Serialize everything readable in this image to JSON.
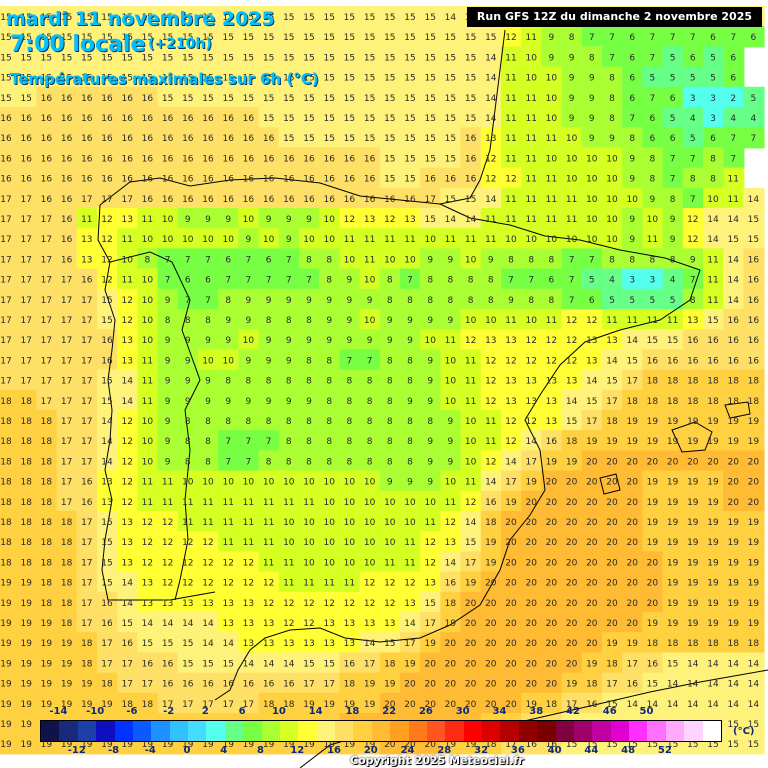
{
  "header": {
    "date_line": "mardi 11 novembre 2025",
    "time_line": "7:00 locale",
    "lead_time": "(+210h)",
    "variable_line": "Températures maximales sur 6h (°C)",
    "run_info": "Run GFS 12Z du dimanche 2 novembre 2025"
  },
  "legend": {
    "unit": "(°C)",
    "upper_ticks": [
      "-14",
      "-10",
      "-6",
      "-2",
      "2",
      "6",
      "10",
      "14",
      "18",
      "22",
      "26",
      "30",
      "34",
      "38",
      "42",
      "46",
      "50"
    ],
    "lower_ticks": [
      "-12",
      "-8",
      "-4",
      "0",
      "4",
      "8",
      "12",
      "16",
      "20",
      "24",
      "28",
      "32",
      "36",
      "40",
      "44",
      "48",
      "52"
    ],
    "colors": [
      "#12124a",
      "#1a2a7a",
      "#1d3fa8",
      "#0f0fbf",
      "#0033ff",
      "#0a5aff",
      "#1e90ff",
      "#33c0ff",
      "#44ddff",
      "#55ffee",
      "#66ff88",
      "#77ff44",
      "#aaff33",
      "#d6ff22",
      "#ffff33",
      "#fff27a",
      "#ffe066",
      "#ffd040",
      "#ffbb33",
      "#ffa01e",
      "#ff7a1a",
      "#ff5522",
      "#ff2a14",
      "#ff0000",
      "#dd0000",
      "#b40000",
      "#900000",
      "#7a0000",
      "#800040",
      "#a0006a",
      "#c000a0",
      "#e000d0",
      "#ff30ff",
      "#ff70ff",
      "#ffaaff",
      "#ffd4ff",
      "#ffffff"
    ]
  },
  "footer": {
    "copyright": "Copyright 2025 Meteociel.fr"
  },
  "map_values": {
    "rows": [
      "15 15 15 15 15 15 15 15 15 15 15 15 15 15 15 15 15 15 15 15 15 15 14 15 15 15 15 15 15 15 15 15 15 15 15 15 15 15",
      "15 15 15 15 15 15 15 15 15 15 15 15 15 15 15 15 15 15 15 15 15 15 15 15 15 12 11 9 8 7 7 6 7 7 7 6 7 6",
      "15 15 15 15 15 15 15 15 15 15 15 15 15 15 15 15 15 15 15 15 15 15 15 15 14 11 10 9 9 8 7 6 7 5 6 5 6",
      "15 15 15 15 15 15 15 15 15 15 15 15 15 15 15 15 15 15 15 15 15 15 15 15 14 11 10 10 9 9 8 6 5 5 5 5 6",
      "15 15 16 16 16 16 16 16 15 15 15 15 15 15 15 15 15 15 15 15 15 15 15 15 14 11 11 10 9 9 8 6 7 6 3 3 2 5",
      "16 16 16 16 16 16 16 16 16 16 16 16 16 15 15 15 15 15 15 15 15 15 15 15 14 11 11 10 9 9 8 7 6 5 4 3 4 4",
      "16 16 16 16 16 16 16 16 16 16 16 16 16 16 15 15 15 15 15 15 15 15 15 16 13 11 11 11 10 9 9 8 6 6 5 6 7 7",
      "16 16 16 16 16 16 16 16 16 16 16 16 16 16 16 16 16 16 16 15 15 15 15 16 12 11 11 10 10 10 10 9 8 7 7 8 7",
      "16 16 16 16 16 16 16 16 16 16 16 16 16 16 16 16 16 16 16 15 15 16 16 16 12 12 11 11 10 10 10 9 8 7 8 8 11",
      "17 17 16 16 17 17 17 16 16 16 16 16 16 16 16 16 16 16 16 16 16 17 15 15 14 11 11 11 11 10 10 10 9 8 7 10 11 14",
      "17 17 17 16 11 12 13 11 10 9 9 9 10 9 9 9 10 12 13 12 13 15 14 14 11 11 11 11 11 10 10 9 10 9 12 14 14 15",
      "17 17 17 16 13 12 11 10 10 10 10 10 9 10 9 10 10 11 11 11 11 10 11 11 11 10 10 10 10 10 10 9 11 9 12 14 15 15",
      "17 17 17 16 13 12 10 8 7 7 7 6 7 6 7 8 8 10 11 10 10 9 9 10 9 8 8 8 7 7 8 8 8 8 9 11 14 16",
      "17 17 17 17 16 12 11 10 7 6 6 7 7 7 7 7 8 9 10 8 7 8 8 8 8 7 7 6 7 5 4 3 3 4 7 11 14 16",
      "17 17 17 17 17 15 12 10 9 7 7 8 9 9 9 9 9 9 9 8 8 8 8 8 8 9 8 8 7 6 5 5 5 5 8 11 14 16",
      "17 17 17 17 17 15 12 10 8 8 8 9 9 8 8 8 9 9 10 9 9 9 9 10 10 11 10 11 12 12 11 11 11 11 13 15 16 16",
      "17 17 17 17 17 16 13 10 9 9 9 9 10 9 9 9 9 9 9 9 9 10 11 12 13 13 12 12 12 13 13 14 15 15 16 16 16 16",
      "17 17 17 17 17 16 13 11 9 9 10 10 9 9 9 8 8 7 7 8 8 9 10 11 12 12 12 12 12 13 14 15 16 16 16 16 16 16",
      "17 17 17 17 17 15 14 11 9 9 9 8 8 8 8 8 8 8 8 8 8 9 10 11 12 13 13 13 13 14 15 17 18 18 18 18 18 18",
      "18 18 17 17 17 15 14 11 9 9 9 9 9 9 9 9 8 8 8 8 9 9 10 11 12 13 13 13 14 15 17 18 18 18 18 18 18 18",
      "18 18 18 17 17 14 12 10 9 8 8 8 8 8 8 8 8 8 8 8 8 8 9 10 11 12 12 13 15 17 18 19 19 19 19 19 19 19",
      "18 18 18 17 17 14 12 10 9 8 8 7 7 7 8 8 8 8 8 8 8 9 9 10 11 12 14 16 18 19 19 19 19 19 19 19 19 19",
      "18 18 18 17 17 14 12 10 9 8 8 7 7 8 8 8 8 8 8 8 8 9 9 10 12 14 17 19 19 20 20 20 20 20 20 20 20 20",
      "18 18 18 17 16 13 12 11 11 10 10 10 10 10 10 10 10 10 10 9 9 9 10 11 14 17 19 20 20 20 20 20 19 19 19 19 20 20",
      "18 18 18 17 16 13 12 11 11 11 11 11 11 11 11 11 10 10 10 10 10 10 11 12 16 19 20 20 20 20 20 20 19 19 19 19 20 20",
      "18 18 18 18 17 15 13 12 12 11 11 11 11 11 10 10 10 10 10 10 10 11 12 14 18 20 20 20 20 20 20 20 19 19 19 19 19 19",
      "18 18 18 18 17 15 13 12 12 12 12 11 11 11 10 10 10 10 10 10 11 12 13 15 19 20 20 20 20 20 20 20 19 19 19 19 19 19",
      "18 18 18 18 17 15 13 12 12 12 12 12 12 11 11 10 10 10 10 11 11 12 14 17 19 20 20 20 20 20 20 20 20 19 19 19 19 19",
      "19 19 18 18 17 15 14 13 12 12 12 12 12 12 11 11 11 11 12 12 12 13 16 19 20 20 20 20 20 20 20 20 20 19 19 19 19 19",
      "19 19 18 18 17 16 14 13 13 13 13 13 13 12 12 12 12 12 12 12 13 15 18 20 20 20 20 20 20 20 20 20 20 19 19 19 19 19",
      "19 19 19 18 17 16 15 14 14 14 14 13 13 13 12 12 13 13 13 13 14 17 19 20 20 20 20 20 20 20 20 20 19 19 19 19 19 19",
      "19 19 19 19 18 17 16 15 15 15 14 14 13 13 13 13 13 13 14 15 17 19 20 20 20 20 20 20 20 20 19 19 18 18 18 18 18 18",
      "19 19 19 19 18 17 17 16 16 15 15 15 14 14 14 15 15 16 17 18 19 20 20 20 20 20 20 20 20 19 18 17 16 15 14 14 14 14",
      "19 19 19 19 19 18 17 17 16 16 16 16 16 16 16 17 17 18 19 19 20 20 20 20 20 20 20 20 19 18 17 16 15 14 14 14 14 14",
      "19 19 19 19 19 19 18 18 17 17 17 17 17 18 18 19 19 19 19 20 20 20 20 20 20 20 19 18 17 16 15 14 14 14 14 14 14 14",
      "19 19 19 19 19 19 19 19 18 18 18 18 18 19 19 19 19 20 20 20 20 20 20 20 19 18 17 16 15 15 15 15 15 15 15 15 15 15",
      "19 19 19 19 19 19 19 19 19 19 19 19 19 19 19 19 19 19 19 20 20 20 19 19 18 17 16 16 15 15 15 15 15 15 15 15 15 15"
    ]
  }
}
